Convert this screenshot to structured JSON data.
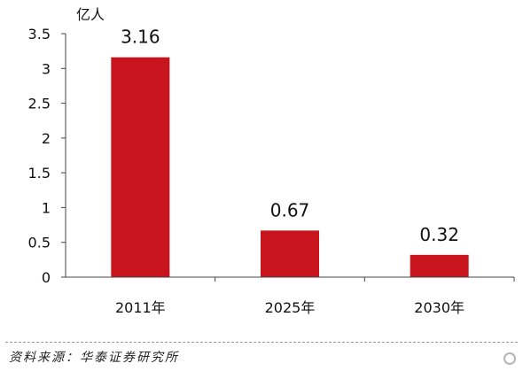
{
  "chart_data": {
    "type": "bar",
    "unit": "亿人",
    "categories": [
      "2011年",
      "2025年",
      "2030年"
    ],
    "values": [
      3.16,
      0.67,
      0.32
    ],
    "data_labels": [
      "3.16",
      "0.67",
      "0.32"
    ],
    "yticks": [
      "0",
      "0.5",
      "1",
      "1.5",
      "2",
      "2.5",
      "3",
      "3.5"
    ],
    "ylim": [
      0,
      3.5
    ],
    "grid": false,
    "bar_color": "#c8151d"
  },
  "source": "资料来源：华泰证券研究所"
}
